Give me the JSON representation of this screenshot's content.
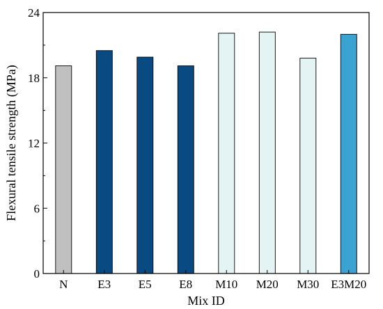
{
  "chart_data": {
    "type": "bar",
    "categories": [
      "N",
      "E3",
      "E5",
      "E8",
      "M10",
      "M20",
      "M30",
      "E3M20"
    ],
    "values": [
      19.1,
      20.5,
      19.9,
      19.1,
      22.1,
      22.2,
      19.8,
      22.0
    ],
    "colors": [
      "#c0c0c0",
      "#0a4a82",
      "#0a4a82",
      "#0a4a82",
      "#e4f3f3",
      "#e4f3f3",
      "#e4f3f3",
      "#3ba3d1"
    ],
    "xlabel": "Mix ID",
    "ylabel": "Flexural tensile strength (MPa)",
    "ylim": [
      0,
      24
    ],
    "yticks": [
      0,
      6,
      12,
      18,
      24
    ],
    "grid": false
  }
}
